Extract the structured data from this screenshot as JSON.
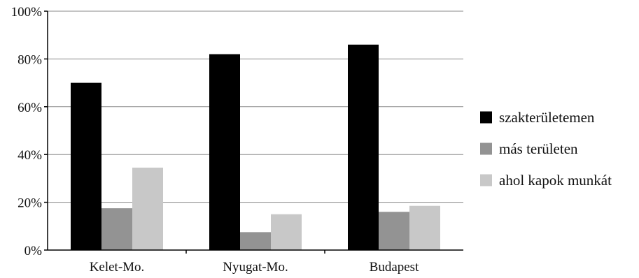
{
  "chart_data": {
    "type": "bar",
    "title": "",
    "xlabel": "",
    "ylabel": "",
    "ylim": [
      0,
      100
    ],
    "yticks": [
      "0%",
      "20%",
      "40%",
      "60%",
      "80%",
      "100%"
    ],
    "ytick_values": [
      0,
      20,
      40,
      60,
      80,
      100
    ],
    "grid": true,
    "legend_position": "right",
    "categories": [
      "Kelet-Mo.",
      "Nyugat-Mo.",
      "Budapest"
    ],
    "series": [
      {
        "name": "szakterületemen",
        "color": "#000000",
        "values": [
          70,
          82,
          86
        ]
      },
      {
        "name": "más területen",
        "color": "#939393",
        "values": [
          17.5,
          7.5,
          16
        ]
      },
      {
        "name": "ahol kapok munkát",
        "color": "#c8c8c8",
        "values": [
          34.5,
          15,
          18.5
        ]
      }
    ]
  }
}
